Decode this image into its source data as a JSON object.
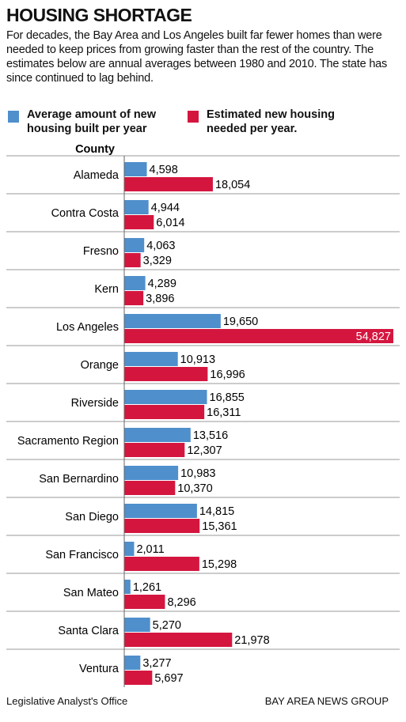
{
  "chart_data": {
    "type": "bar",
    "orientation": "horizontal",
    "title": "HOUSING SHORTAGE",
    "subtitle": "For decades, the Bay Area and Los Angeles built far fewer homes than were needed to keep prices from growing faster than the rest of the country. The estimates below are annual averages between 1980 and 2010. The state has since continued to lag behind.",
    "category_label": "County",
    "categories": [
      "Alameda",
      "Contra Costa",
      "Fresno",
      "Kern",
      "Los Angeles",
      "Orange",
      "Riverside",
      "Sacramento Region",
      "San Bernardino",
      "San Diego",
      "San Francisco",
      "San Mateo",
      "Santa Clara",
      "Ventura"
    ],
    "series": [
      {
        "name": "Average amount of new housing built per year",
        "color": "#4f8fcc",
        "values": [
          4598,
          4944,
          4063,
          4289,
          19650,
          10913,
          16855,
          13516,
          10983,
          14815,
          2011,
          1261,
          5270,
          3277
        ],
        "value_labels": [
          "4,598",
          "4,944",
          "4,063",
          "4,289",
          "19,650",
          "10,913",
          "16,855",
          "13,516",
          "10,983",
          "14,815",
          "2,011",
          "1,261",
          "5,270",
          "3,277"
        ]
      },
      {
        "name": "Estimated new housing needed per year.",
        "color": "#d4163f",
        "values": [
          18054,
          6014,
          3329,
          3896,
          54827,
          16996,
          16311,
          12307,
          10370,
          15361,
          15298,
          8296,
          21978,
          5697
        ],
        "value_labels": [
          "18,054",
          "6,014",
          "3,329",
          "3,896",
          "54,827",
          "16,996",
          "16,311",
          "12,307",
          "10,370",
          "15,361",
          "15,298",
          "8,296",
          "21,978",
          "5,697"
        ]
      }
    ]
  },
  "footer": {
    "source": "Legislative Analyst's Office",
    "credit": "BAY AREA NEWS GROUP"
  }
}
